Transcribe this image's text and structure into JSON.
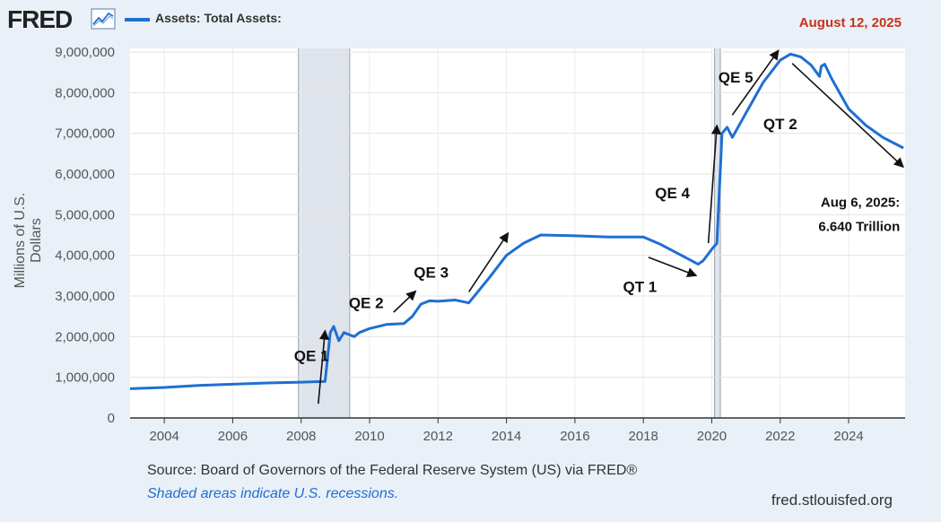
{
  "brand": {
    "logo_text": "FRED",
    "registered": "®"
  },
  "header": {
    "series_label": "Assets: Total Assets:",
    "date": "August 12, 2025"
  },
  "footer": {
    "source": "Source: Board of Governors of the Federal Reserve System (US) via FRED®",
    "note": "Shaded areas indicate U.S. recessions.",
    "url": "fred.stlouisfed.org"
  },
  "colors": {
    "series": "#1f6fd1",
    "recession": "#dfe4ec",
    "background": "#eaf0f8",
    "date": "#c7331a"
  },
  "chart_data": {
    "type": "line",
    "ylabel": "Millions of U.S. Dollars",
    "xlim": [
      2003.0,
      2025.65
    ],
    "ylim": [
      0,
      9000000
    ],
    "grid": true,
    "x_ticks": [
      "2004",
      "2006",
      "2008",
      "2010",
      "2012",
      "2014",
      "2016",
      "2018",
      "2020",
      "2022",
      "2024"
    ],
    "y_ticks": [
      "0",
      "1,000,000",
      "2,000,000",
      "3,000,000",
      "4,000,000",
      "5,000,000",
      "6,000,000",
      "7,000,000",
      "8,000,000",
      "9,000,000"
    ],
    "recessions": [
      [
        2007.92,
        2009.42
      ],
      [
        2020.08,
        2020.25
      ]
    ],
    "series": [
      {
        "name": "Assets: Total Assets",
        "x": [
          2003.0,
          2004.0,
          2005.0,
          2006.0,
          2007.0,
          2008.0,
          2008.7,
          2008.85,
          2008.95,
          2009.1,
          2009.25,
          2009.4,
          2009.55,
          2009.7,
          2010.0,
          2010.5,
          2011.0,
          2011.25,
          2011.5,
          2011.75,
          2012.0,
          2012.5,
          2012.9,
          2013.5,
          2014.0,
          2014.5,
          2015.0,
          2016.0,
          2017.0,
          2018.0,
          2018.5,
          2019.0,
          2019.6,
          2019.75,
          2020.0,
          2020.15,
          2020.3,
          2020.45,
          2020.6,
          2021.0,
          2021.5,
          2022.0,
          2022.3,
          2022.6,
          2022.9,
          2023.15,
          2023.2,
          2023.3,
          2023.5,
          2024.0,
          2024.5,
          2025.0,
          2025.6
        ],
        "y": [
          720000,
          750000,
          800000,
          830000,
          860000,
          880000,
          900000,
          2100000,
          2250000,
          1900000,
          2100000,
          2050000,
          2000000,
          2100000,
          2200000,
          2300000,
          2320000,
          2500000,
          2800000,
          2880000,
          2870000,
          2900000,
          2830000,
          3450000,
          4000000,
          4300000,
          4500000,
          4480000,
          4450000,
          4450000,
          4270000,
          4050000,
          3780000,
          3870000,
          4150000,
          4300000,
          7000000,
          7150000,
          6900000,
          7500000,
          8250000,
          8800000,
          8950000,
          8880000,
          8680000,
          8400000,
          8650000,
          8700000,
          8350000,
          7600000,
          7200000,
          6900000,
          6640000
        ]
      }
    ],
    "annotations": [
      {
        "text": "QE 1",
        "x": 2008.3,
        "y": 1400000
      },
      {
        "text": "QE 2",
        "x": 2009.9,
        "y": 2700000
      },
      {
        "text": "QE 3",
        "x": 2011.8,
        "y": 3450000
      },
      {
        "text": "QE 4",
        "x": 2018.85,
        "y": 5400000
      },
      {
        "text": "QE 5",
        "x": 2020.7,
        "y": 8250000
      },
      {
        "text": "QT 1",
        "x": 2017.9,
        "y": 3100000
      },
      {
        "text": "QT 2",
        "x": 2022.0,
        "y": 7100000
      },
      {
        "text": "Aug 6, 2025:",
        "x": 2025.5,
        "y": 5200000
      },
      {
        "text": "6.640 Trillion",
        "x": 2025.5,
        "y": 4600000
      }
    ],
    "arrows": [
      {
        "from": [
          2008.5,
          350000
        ],
        "to": [
          2008.7,
          2150000
        ]
      },
      {
        "from": [
          2010.7,
          2600000
        ],
        "to": [
          2011.35,
          3120000
        ]
      },
      {
        "text": "",
        "from": [
          2012.9,
          3100000
        ],
        "to": [
          2014.05,
          4550000
        ]
      },
      {
        "from": [
          2018.15,
          3950000
        ],
        "to": [
          2019.55,
          3500000
        ]
      },
      {
        "from": [
          2019.9,
          4300000
        ],
        "to": [
          2020.15,
          7200000
        ]
      },
      {
        "from": [
          2020.6,
          7450000
        ],
        "to": [
          2021.95,
          9040000
        ]
      },
      {
        "from": [
          2022.35,
          8720000
        ],
        "to": [
          2025.6,
          6170000
        ]
      }
    ]
  }
}
